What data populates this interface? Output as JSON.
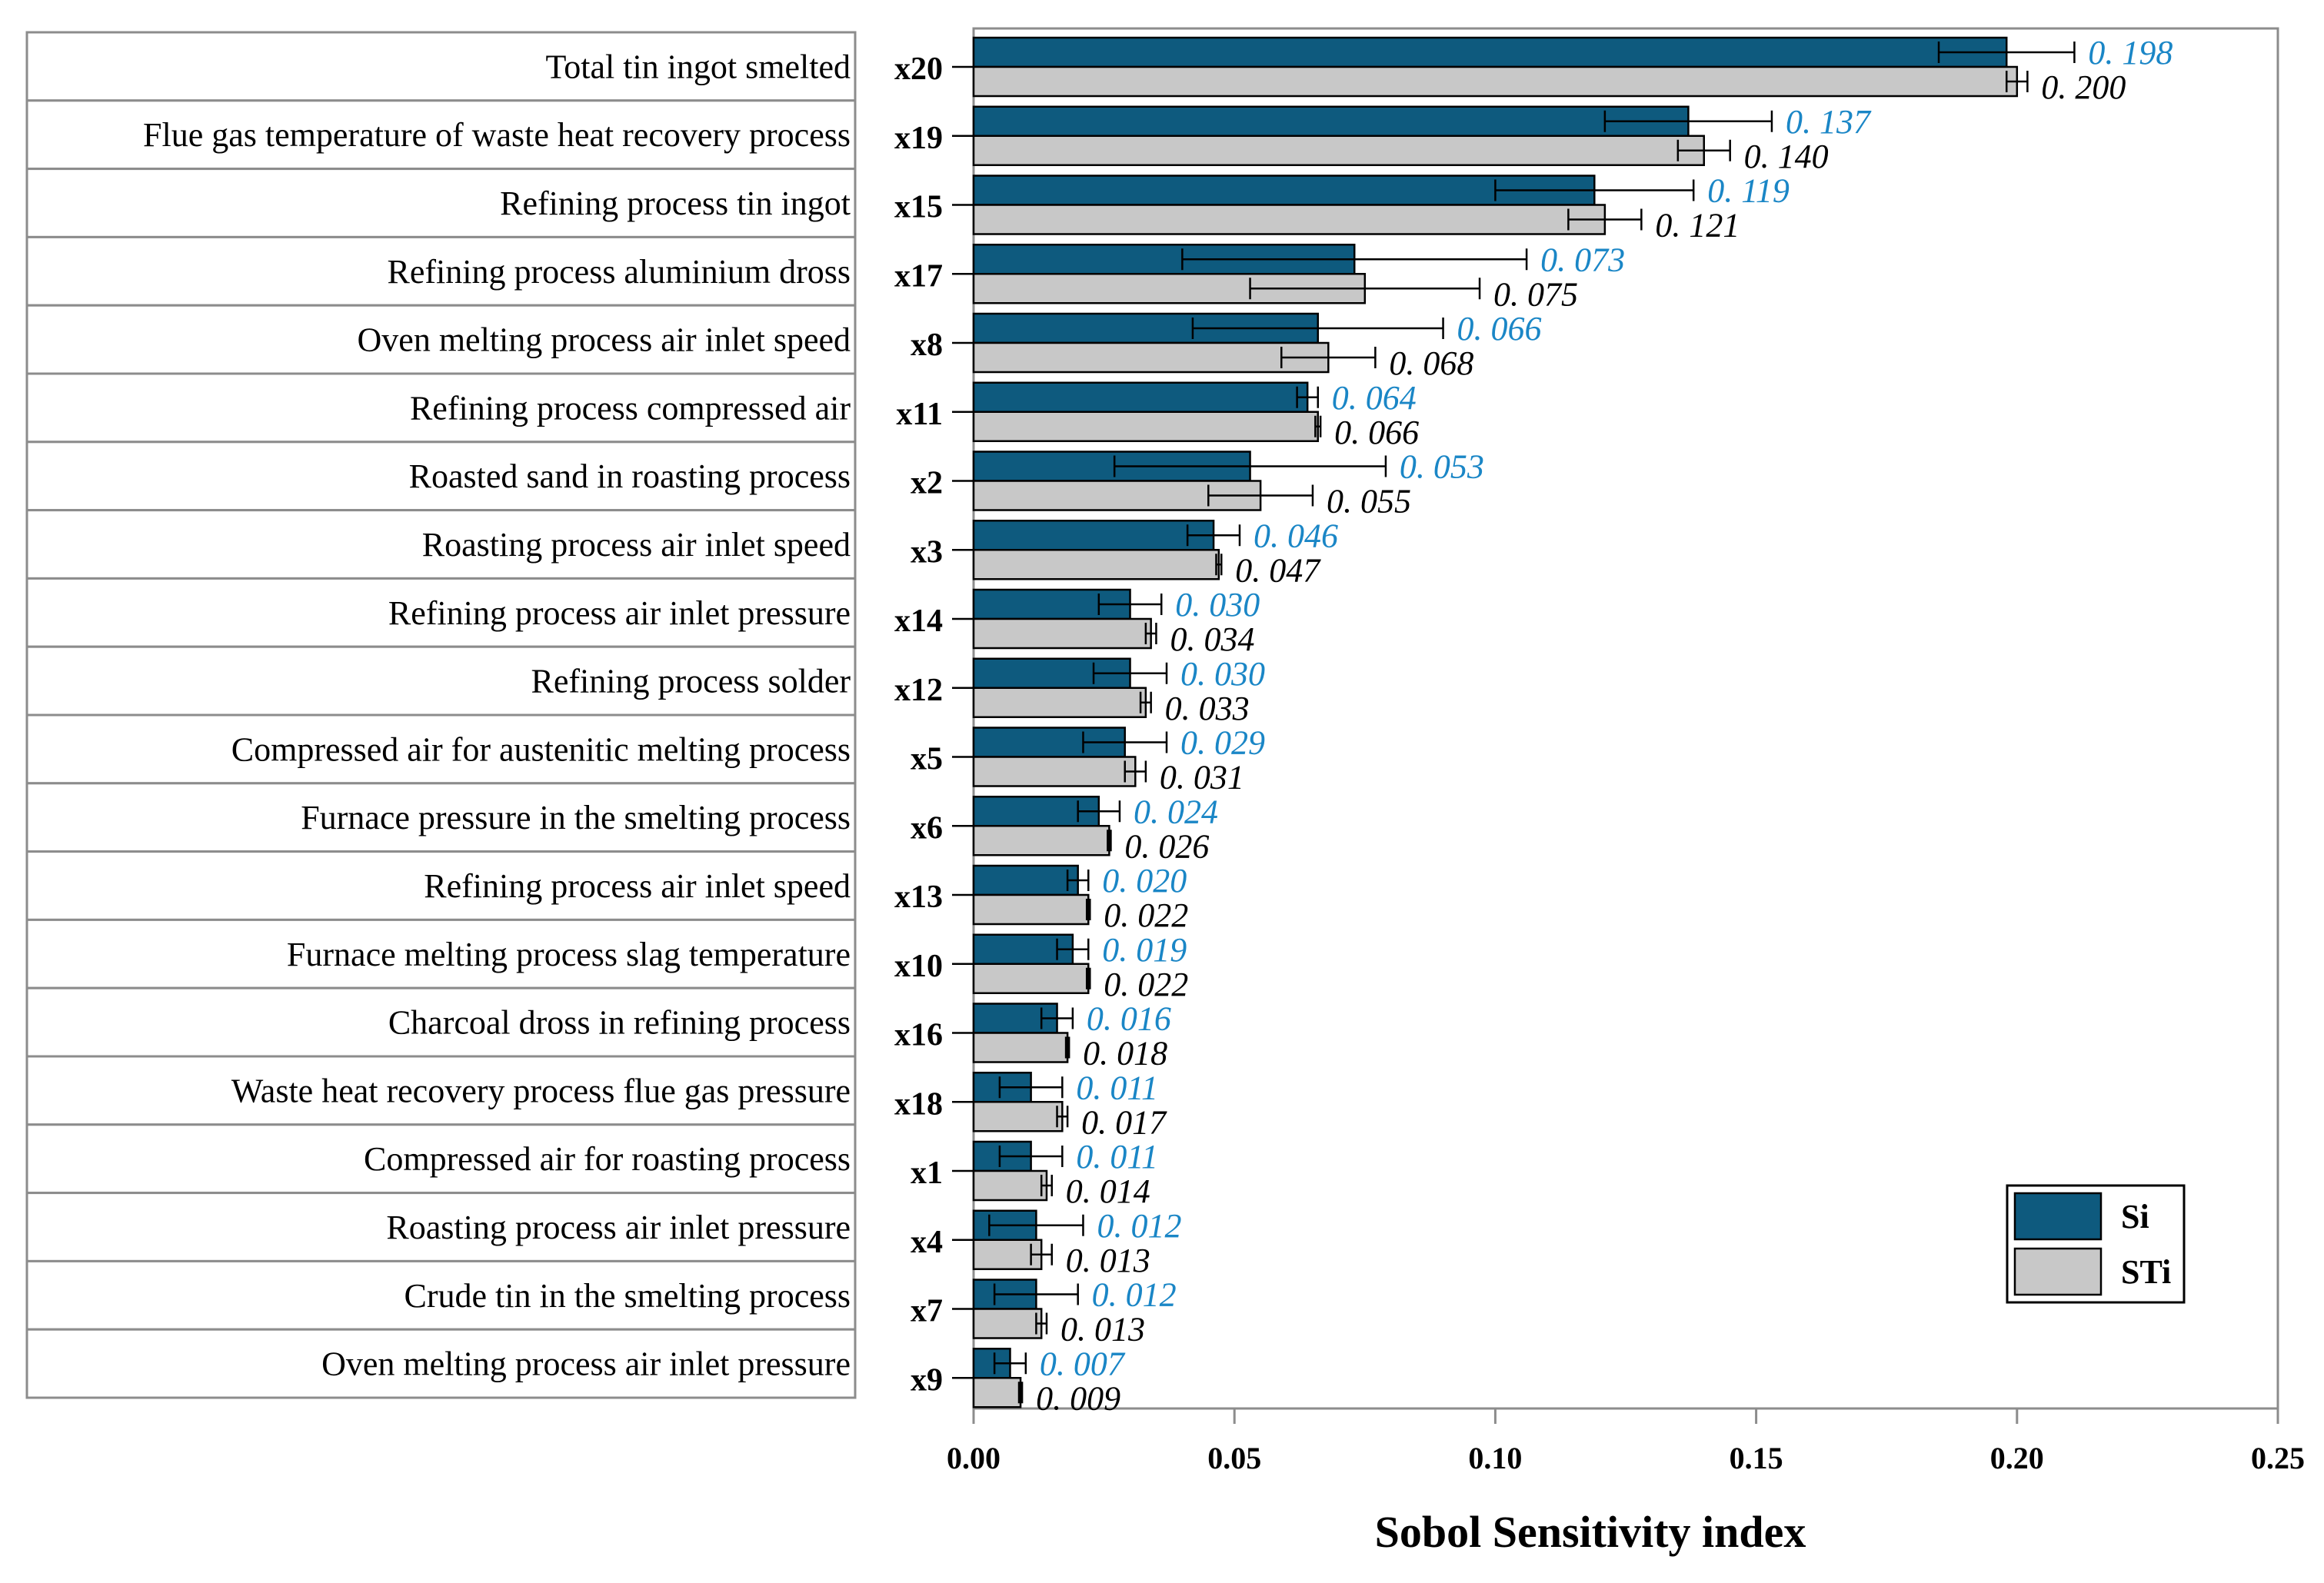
{
  "chart_data": {
    "type": "bar",
    "orientation": "horizontal",
    "xlabel": "Sobol Sensitivity index",
    "xlim": [
      0,
      0.25
    ],
    "xticks": [
      "0.00",
      "0.05",
      "0.10",
      "0.15",
      "0.20",
      "0.25"
    ],
    "grid": false,
    "legend": {
      "placement": "bottom-right",
      "entries": [
        "Si",
        "STi"
      ]
    },
    "colors": {
      "Si": "#0e5a7e",
      "STi": "#c8c8c8",
      "si_label": "#1a86c6",
      "sti_label": "#000000"
    },
    "categories": [
      {
        "var": "x20",
        "label": "Total tin ingot smelted",
        "si": 0.198,
        "sti": 0.2,
        "si_txt": "0. 198",
        "sti_txt": "0. 200",
        "si_err": 0.013,
        "sti_err": 0.002
      },
      {
        "var": "x19",
        "label": "Flue gas temperature of waste heat recovery process",
        "si": 0.137,
        "sti": 0.14,
        "si_txt": "0. 137",
        "sti_txt": "0. 140",
        "si_err": 0.016,
        "sti_err": 0.005
      },
      {
        "var": "x15",
        "label": "Refining process tin ingot",
        "si": 0.119,
        "sti": 0.121,
        "si_txt": "0. 119",
        "sti_txt": "0. 121",
        "si_err": 0.019,
        "sti_err": 0.007
      },
      {
        "var": "x17",
        "label": "Refining process aluminium dross",
        "si": 0.073,
        "sti": 0.075,
        "si_txt": "0. 073",
        "sti_txt": "0. 075",
        "si_err": 0.033,
        "sti_err": 0.022
      },
      {
        "var": "x8",
        "label": "Oven melting process air inlet speed",
        "si": 0.066,
        "sti": 0.068,
        "si_txt": "0. 066",
        "sti_txt": "0. 068",
        "si_err": 0.024,
        "sti_err": 0.009
      },
      {
        "var": "x11",
        "label": "Refining process compressed air",
        "si": 0.064,
        "sti": 0.066,
        "si_txt": "0. 064",
        "sti_txt": "0. 066",
        "si_err": 0.002,
        "sti_err": 0.0005
      },
      {
        "var": "x2",
        "label": "Roasted sand in roasting process",
        "si": 0.053,
        "sti": 0.055,
        "si_txt": "0. 053",
        "sti_txt": "0. 055",
        "si_err": 0.026,
        "sti_err": 0.01
      },
      {
        "var": "x3",
        "label": "Roasting process air inlet speed",
        "si": 0.046,
        "sti": 0.047,
        "si_txt": "0. 046",
        "sti_txt": "0. 047",
        "si_err": 0.005,
        "sti_err": 0.0005
      },
      {
        "var": "x14",
        "label": "Refining process air inlet pressure",
        "si": 0.03,
        "sti": 0.034,
        "si_txt": "0. 030",
        "sti_txt": "0. 034",
        "si_err": 0.006,
        "sti_err": 0.001
      },
      {
        "var": "x12",
        "label": "Refining process solder",
        "si": 0.03,
        "sti": 0.033,
        "si_txt": "0. 030",
        "sti_txt": "0. 033",
        "si_err": 0.007,
        "sti_err": 0.001
      },
      {
        "var": "x5",
        "label": "Compressed air for austenitic melting process",
        "si": 0.029,
        "sti": 0.031,
        "si_txt": "0. 029",
        "sti_txt": "0. 031",
        "si_err": 0.008,
        "sti_err": 0.002
      },
      {
        "var": "x6",
        "label": "Furnace pressure in the smelting process",
        "si": 0.024,
        "sti": 0.026,
        "si_txt": "0. 024",
        "sti_txt": "0. 026",
        "si_err": 0.004,
        "sti_err": 0.0003
      },
      {
        "var": "x13",
        "label": "Refining process air inlet speed",
        "si": 0.02,
        "sti": 0.022,
        "si_txt": "0. 020",
        "sti_txt": "0. 022",
        "si_err": 0.002,
        "sti_err": 0.0003
      },
      {
        "var": "x10",
        "label": "Furnace melting process slag temperature",
        "si": 0.019,
        "sti": 0.022,
        "si_txt": "0. 019",
        "sti_txt": "0. 022",
        "si_err": 0.003,
        "sti_err": 0.0003
      },
      {
        "var": "x16",
        "label": "Charcoal dross in refining process",
        "si": 0.016,
        "sti": 0.018,
        "si_txt": "0. 016",
        "sti_txt": "0. 018",
        "si_err": 0.003,
        "sti_err": 0.0003
      },
      {
        "var": "x18",
        "label": "Waste heat recovery process flue gas pressure",
        "si": 0.011,
        "sti": 0.017,
        "si_txt": "0. 011",
        "sti_txt": "0. 017",
        "si_err": 0.006,
        "sti_err": 0.001
      },
      {
        "var": "x1",
        "label": "Compressed air for roasting process",
        "si": 0.011,
        "sti": 0.014,
        "si_txt": "0. 011",
        "sti_txt": "0. 014",
        "si_err": 0.006,
        "sti_err": 0.001
      },
      {
        "var": "x4",
        "label": "Roasting process air inlet pressure",
        "si": 0.012,
        "sti": 0.013,
        "si_txt": "0. 012",
        "sti_txt": "0. 013",
        "si_err": 0.009,
        "sti_err": 0.002
      },
      {
        "var": "x7",
        "label": "Crude tin in the smelting process",
        "si": 0.012,
        "sti": 0.013,
        "si_txt": "0. 012",
        "sti_txt": "0. 013",
        "si_err": 0.008,
        "sti_err": 0.001
      },
      {
        "var": "x9",
        "label": "Oven melting process air inlet pressure",
        "si": 0.007,
        "sti": 0.009,
        "si_txt": "0. 007",
        "sti_txt": "0. 009",
        "si_err": 0.003,
        "sti_err": 0.0003
      }
    ]
  }
}
